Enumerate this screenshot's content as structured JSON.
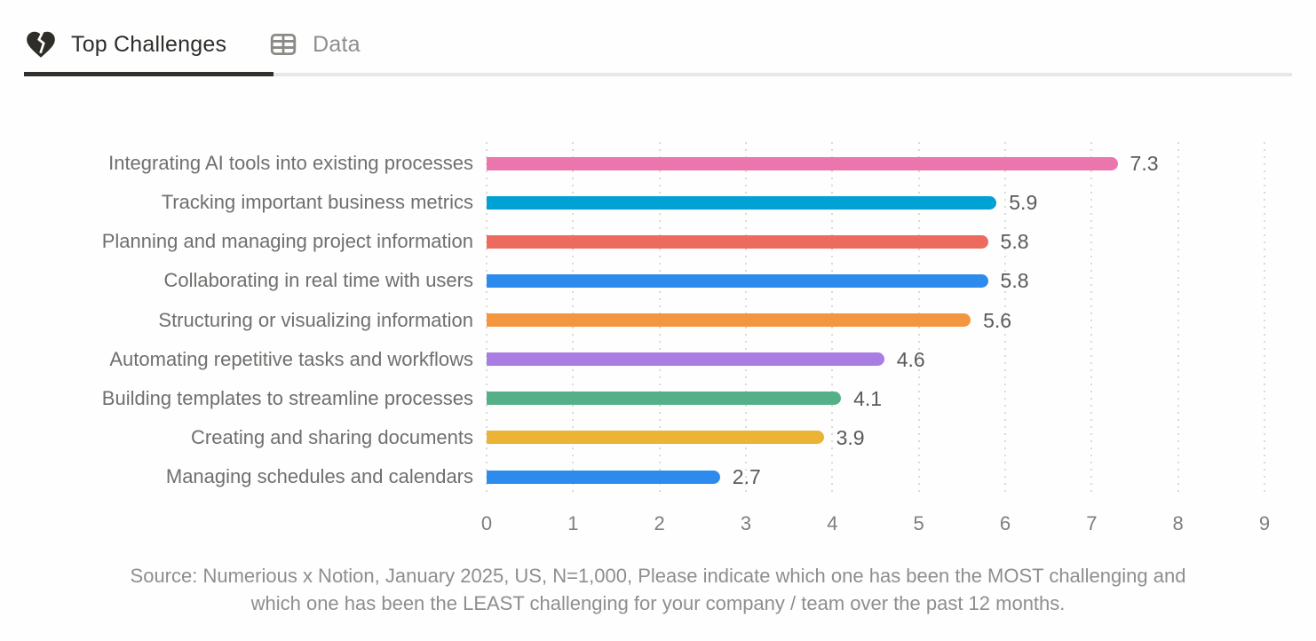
{
  "tabs": [
    {
      "label": "Top Challenges",
      "icon": "broken-heart",
      "active": true
    },
    {
      "label": "Data",
      "icon": "table",
      "active": false
    }
  ],
  "chart_data": {
    "type": "bar",
    "orientation": "horizontal",
    "title": "",
    "xlabel": "",
    "ylabel": "",
    "xlim": [
      0,
      9
    ],
    "x_ticks": [
      0,
      1,
      2,
      3,
      4,
      5,
      6,
      7,
      8,
      9
    ],
    "grid": "vertical-dotted",
    "legend": "none",
    "categories": [
      "Integrating AI tools into existing processes",
      "Tracking important business metrics",
      "Planning and managing project information",
      "Collaborating in real time with users",
      "Structuring or visualizing information",
      "Automating repetitive tasks and workflows",
      "Building templates to streamline processes",
      "Creating and sharing documents",
      "Managing schedules and calendars"
    ],
    "values": [
      7.3,
      5.9,
      5.8,
      5.8,
      5.6,
      4.6,
      4.1,
      3.9,
      2.7
    ],
    "value_labels": [
      "7.3",
      "5.9",
      "5.8",
      "5.8",
      "5.6",
      "4.6",
      "4.1",
      "3.9",
      "2.7"
    ],
    "bar_colors": [
      "#ea76ad",
      "#00a2d4",
      "#ed6a5e",
      "#2e8bee",
      "#f4953f",
      "#a97de2",
      "#55b089",
      "#ecb434",
      "#2e8bee"
    ]
  },
  "source": {
    "line1": "Source: Numerious x Notion, January 2025, US, N=1,000, Please indicate which one has been the MOST challenging and",
    "line2": "which one has been the LEAST challenging for your company /  team over the past 12 months."
  },
  "colors": {
    "active_tab": "#2f2d29",
    "inactive_tab": "#8e8e8b",
    "tab_underline": "#332f2b",
    "grid": "#dadad8",
    "category_label": "#6f6f6d",
    "value_label": "#5a5a58",
    "tick_label": "#7e7e7c",
    "source_text": "#8e8e8c"
  }
}
